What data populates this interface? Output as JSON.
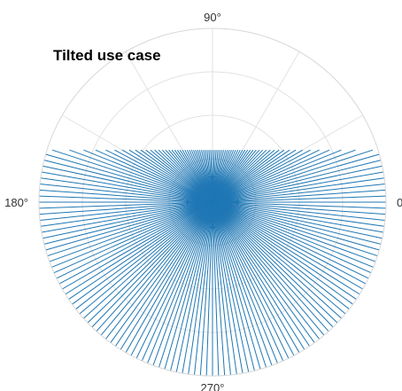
{
  "chart_data": {
    "type": "line",
    "subtype": "polar",
    "title": "Tilted use case",
    "angle_unit": "degrees",
    "theta_zero": "right",
    "theta_direction": "counterclockwise",
    "angular_tick_labels": [
      "0",
      "90°",
      "180°",
      "270°"
    ],
    "angular_tick_values": [
      0,
      90,
      180,
      270
    ],
    "grid": true,
    "radial_rings": 3,
    "series": [
      {
        "color": "#1f77b4",
        "description_shape": "fan of line segments from the center; each ray ends at the edge of a region clipped above by a horizontal line (y = 0.3 of the outer radius) and by the outer circle elsewhere",
        "ray_angles_deg_start": 0,
        "ray_angles_deg_end": 360,
        "ray_angle_step_deg": 2,
        "clip_line_y_fraction_of_radius": 0.3
      }
    ]
  }
}
